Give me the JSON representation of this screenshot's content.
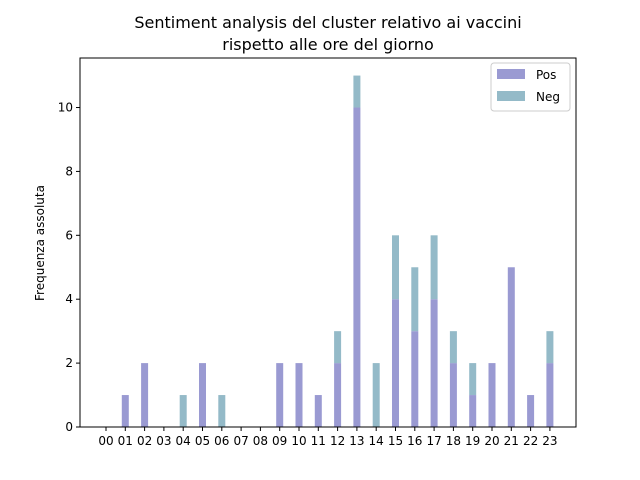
{
  "chart_data": {
    "type": "bar",
    "stacked": true,
    "title_line1": "Sentiment analysis del cluster relativo ai vaccini",
    "title_line2": "rispetto alle ore del giorno",
    "xlabel": "",
    "ylabel": "Frequenza assoluta",
    "categories": [
      "00",
      "01",
      "02",
      "03",
      "04",
      "05",
      "06",
      "07",
      "08",
      "09",
      "10",
      "11",
      "12",
      "13",
      "14",
      "15",
      "16",
      "17",
      "18",
      "19",
      "20",
      "21",
      "22",
      "23"
    ],
    "series": [
      {
        "name": "Pos",
        "color": "#9a9ad2",
        "values": [
          0,
          1,
          2,
          0,
          0,
          2,
          0,
          0,
          0,
          2,
          2,
          1,
          2,
          10,
          0,
          4,
          3,
          4,
          2,
          1,
          2,
          5,
          1,
          2
        ]
      },
      {
        "name": "Neg",
        "color": "#94bac8",
        "values": [
          0,
          0,
          0,
          0,
          1,
          0,
          1,
          0,
          0,
          0,
          0,
          0,
          1,
          1,
          2,
          2,
          2,
          2,
          1,
          1,
          0,
          0,
          0,
          1
        ]
      }
    ],
    "ylim": [
      0,
      11.55
    ],
    "yticks": [
      0,
      2,
      4,
      6,
      8,
      10
    ],
    "legend_position": "top-right",
    "grid": false
  }
}
